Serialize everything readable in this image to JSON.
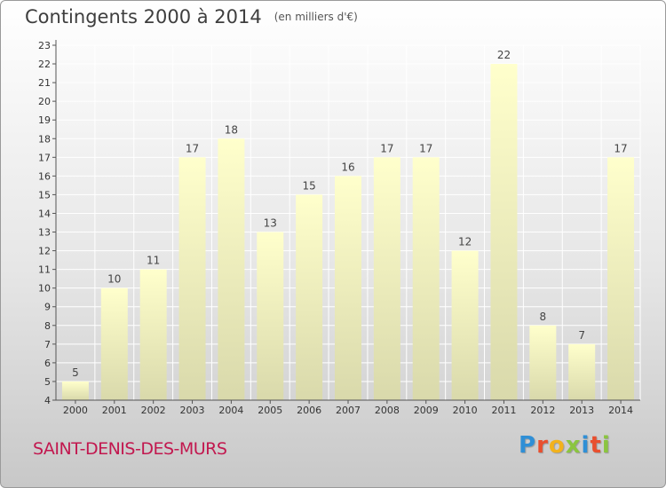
{
  "header": {
    "title": "Contingents 2000 à 2014",
    "subtitle": "(en milliers d'€)"
  },
  "footer": {
    "commune": "SAINT-DENIS-DES-MURS",
    "brand_letters": [
      "P",
      "r",
      "o",
      "x",
      "i",
      "t",
      "i"
    ],
    "brand_colors": [
      "#2f8fd6",
      "#e94f2e",
      "#f2b21c",
      "#8bc53f",
      "#2f8fd6",
      "#e94f2e",
      "#8bc53f"
    ]
  },
  "chart_data": {
    "type": "bar",
    "title": "Contingents 2000 à 2014",
    "subtitle": "(en milliers d'€)",
    "categories": [
      "2000",
      "2001",
      "2002",
      "2003",
      "2004",
      "2005",
      "2006",
      "2007",
      "2008",
      "2009",
      "2010",
      "2011",
      "2012",
      "2013",
      "2014"
    ],
    "values": [
      5,
      10,
      11,
      17,
      18,
      13,
      15,
      16,
      17,
      17,
      12,
      22,
      8,
      7,
      17
    ],
    "ylim": [
      4,
      23
    ],
    "yticks": [
      4,
      5,
      6,
      7,
      8,
      9,
      10,
      11,
      12,
      13,
      14,
      15,
      16,
      17,
      18,
      19,
      20,
      21,
      22,
      23
    ],
    "grid": true,
    "bar_color": "#ffffcc",
    "bar_shade_color": "#d8d8a8"
  }
}
